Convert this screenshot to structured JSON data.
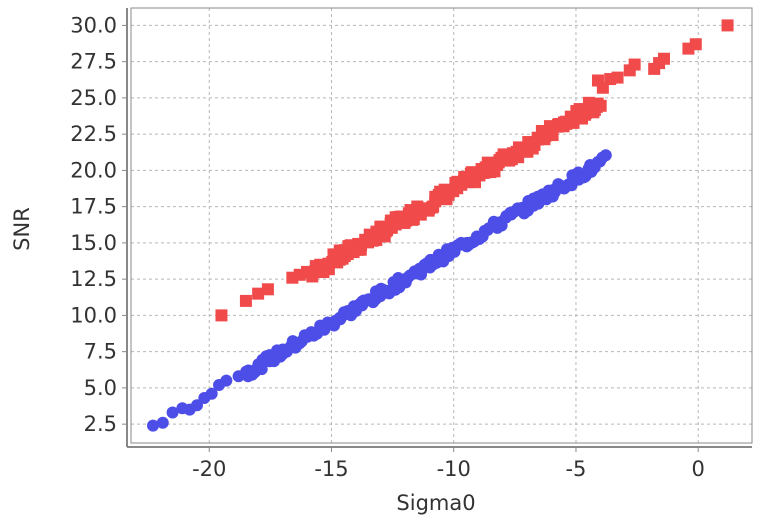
{
  "chart_data": {
    "type": "scatter",
    "xlabel": "Sigma0",
    "ylabel": "SNR",
    "xlim": [
      -23.2,
      2.2
    ],
    "ylim": [
      1.2,
      31.2
    ],
    "grid": true,
    "x_ticks": [
      -20,
      -15,
      -10,
      -5,
      0
    ],
    "x_tick_labels": [
      "-20",
      "-15",
      "-10",
      "-5",
      "0"
    ],
    "y_ticks": [
      2.5,
      5.0,
      7.5,
      10.0,
      12.5,
      15.0,
      17.5,
      20.0,
      22.5,
      25.0,
      27.5,
      30.0
    ],
    "y_tick_labels": [
      "2.5",
      "5.0",
      "7.5",
      "10.0",
      "12.5",
      "15.0",
      "17.5",
      "20.0",
      "22.5",
      "25.0",
      "27.5",
      "30.0"
    ],
    "series": [
      {
        "marker": "square",
        "color": "#f04a4a",
        "points": [
          [
            1.2,
            30.0
          ],
          [
            -0.1,
            28.7
          ],
          [
            -0.4,
            28.4
          ],
          [
            -1.4,
            27.7
          ],
          [
            -1.6,
            27.4
          ],
          [
            -1.8,
            27.0
          ],
          [
            -2.6,
            27.3
          ],
          [
            -2.8,
            26.9
          ],
          [
            -3.3,
            26.4
          ],
          [
            -3.6,
            26.3
          ],
          [
            -4.1,
            26.2
          ],
          [
            -3.9,
            25.7
          ],
          [
            -19.5,
            10.0
          ],
          [
            -18.5,
            11.0
          ],
          [
            -18.0,
            11.5
          ],
          [
            -17.6,
            11.8
          ],
          [
            -16.6,
            12.6
          ],
          [
            -16.3,
            12.8
          ],
          [
            -16.0,
            13.0
          ],
          [
            -15.6,
            13.3
          ]
        ],
        "band": {
          "x_start": -15.8,
          "x_end": -4.0,
          "slope": 1.0,
          "intercept": 28.7,
          "spread": 0.45,
          "count": 160
        }
      },
      {
        "marker": "circle",
        "color": "#4d4de8",
        "points": [
          [
            -22.3,
            2.4
          ],
          [
            -21.9,
            2.6
          ],
          [
            -21.5,
            3.3
          ],
          [
            -21.1,
            3.6
          ],
          [
            -20.8,
            3.5
          ],
          [
            -20.5,
            3.8
          ],
          [
            -20.2,
            4.3
          ],
          [
            -19.9,
            4.6
          ],
          [
            -19.6,
            5.2
          ],
          [
            -19.3,
            5.5
          ],
          [
            -18.8,
            5.8
          ],
          [
            -18.4,
            6.2
          ]
        ],
        "band": {
          "x_start": -18.5,
          "x_end": -3.8,
          "slope": 1.0,
          "intercept": 24.5,
          "spread": 0.35,
          "count": 170
        }
      }
    ]
  }
}
